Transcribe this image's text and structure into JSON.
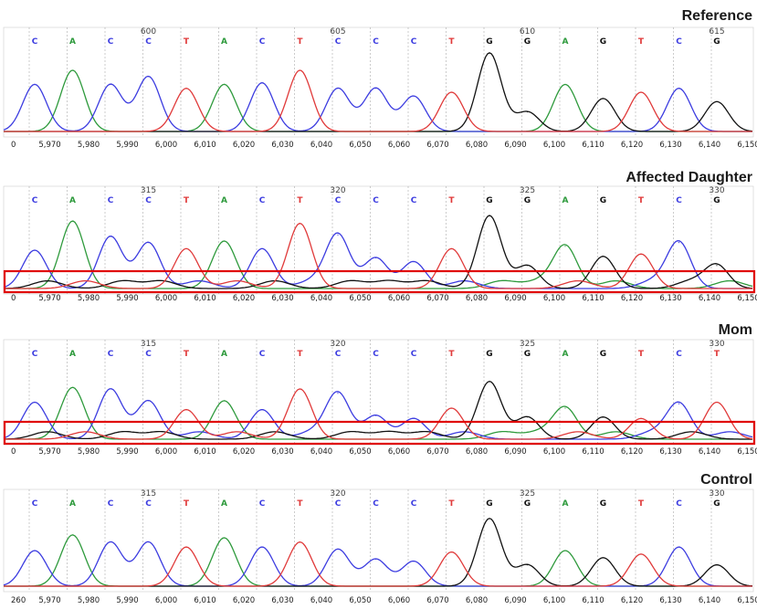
{
  "colors": {
    "A": "#2e9a3c",
    "C": "#3c3ce0",
    "G": "#111111",
    "T": "#e03a3a",
    "highlight": "#e00000",
    "grid": "#9a9a9a"
  },
  "chart_data": [
    {
      "type": "line",
      "title": "Reference",
      "bases": [
        "C",
        "A",
        "C",
        "C",
        "T",
        "A",
        "C",
        "T",
        "C",
        "C",
        "C",
        "T",
        "G",
        "G",
        "A",
        "G",
        "T",
        "C",
        "G"
      ],
      "position_labels": [
        {
          "value": "600",
          "base_index": 3
        },
        {
          "value": "605",
          "base_index": 8
        },
        {
          "value": "610",
          "base_index": 13
        },
        {
          "value": "615",
          "base_index": 18
        }
      ],
      "x_ticks": [
        "0",
        "5,970",
        "5,980",
        "5,990",
        "6,000",
        "6,010",
        "6,020",
        "6,030",
        "6,040",
        "6,050",
        "6,060",
        "6,070",
        "6,080",
        "6,090",
        "6,100",
        "6,110",
        "6,120",
        "6,130",
        "6,140",
        "6,150"
      ],
      "highlight_box": false,
      "peaks": [
        {
          "base": "C",
          "height": 0.6
        },
        {
          "base": "A",
          "height": 0.78
        },
        {
          "base": "C",
          "height": 0.6
        },
        {
          "base": "C",
          "height": 0.7
        },
        {
          "base": "T",
          "height": 0.55
        },
        {
          "base": "A",
          "height": 0.6
        },
        {
          "base": "C",
          "height": 0.62
        },
        {
          "base": "T",
          "height": 0.78
        },
        {
          "base": "C",
          "height": 0.55
        },
        {
          "base": "C",
          "height": 0.55
        },
        {
          "base": "C",
          "height": 0.45
        },
        {
          "base": "T",
          "height": 0.5
        },
        {
          "base": "G",
          "height": 1.0
        },
        {
          "base": "G",
          "height": 0.25
        },
        {
          "base": "A",
          "height": 0.6
        },
        {
          "base": "G",
          "height": 0.42
        },
        {
          "base": "T",
          "height": 0.5
        },
        {
          "base": "C",
          "height": 0.55
        },
        {
          "base": "G",
          "height": 0.38
        }
      ]
    },
    {
      "type": "line",
      "title": "Affected Daughter",
      "bases": [
        "C",
        "A",
        "C",
        "C",
        "T",
        "A",
        "C",
        "T",
        "C",
        "C",
        "C",
        "T",
        "G",
        "G",
        "A",
        "G",
        "T",
        "C",
        "G"
      ],
      "position_labels": [
        {
          "value": "315",
          "base_index": 3
        },
        {
          "value": "320",
          "base_index": 8
        },
        {
          "value": "325",
          "base_index": 13
        },
        {
          "value": "330",
          "base_index": 18
        }
      ],
      "x_ticks": [
        "0",
        "5,970",
        "5,980",
        "5,990",
        "6,000",
        "6,010",
        "6,020",
        "6,030",
        "6,040",
        "6,050",
        "6,060",
        "6,070",
        "6,080",
        "6,090",
        "6,100",
        "6,110",
        "6,120",
        "6,130",
        "6,140",
        "6,150"
      ],
      "highlight_box": true,
      "peaks": [
        {
          "base": "C",
          "height": 0.5
        },
        {
          "base": "A",
          "height": 0.88
        },
        {
          "base": "C",
          "height": 0.68
        },
        {
          "base": "C",
          "height": 0.6
        },
        {
          "base": "T",
          "height": 0.52
        },
        {
          "base": "A",
          "height": 0.62
        },
        {
          "base": "C",
          "height": 0.52
        },
        {
          "base": "T",
          "height": 0.85
        },
        {
          "base": "C",
          "height": 0.7
        },
        {
          "base": "C",
          "height": 0.4
        },
        {
          "base": "C",
          "height": 0.35
        },
        {
          "base": "T",
          "height": 0.52
        },
        {
          "base": "G",
          "height": 0.95
        },
        {
          "base": "G",
          "height": 0.3
        },
        {
          "base": "A",
          "height": 0.55
        },
        {
          "base": "G",
          "height": 0.42
        },
        {
          "base": "T",
          "height": 0.45
        },
        {
          "base": "C",
          "height": 0.6
        },
        {
          "base": "G",
          "height": 0.3
        }
      ]
    },
    {
      "type": "line",
      "title": "Mom",
      "bases": [
        "C",
        "A",
        "C",
        "C",
        "T",
        "A",
        "C",
        "T",
        "C",
        "C",
        "C",
        "T",
        "G",
        "G",
        "A",
        "G",
        "T",
        "C",
        "T"
      ],
      "position_labels": [
        {
          "value": "315",
          "base_index": 3
        },
        {
          "value": "320",
          "base_index": 8
        },
        {
          "value": "325",
          "base_index": 13
        },
        {
          "value": "330",
          "base_index": 18
        }
      ],
      "x_ticks": [
        "0",
        "5,970",
        "5,980",
        "5,990",
        "6,000",
        "6,010",
        "6,020",
        "6,030",
        "6,040",
        "6,050",
        "6,060",
        "6,070",
        "6,080",
        "6,090",
        "6,100",
        "6,110",
        "6,120",
        "6,130",
        "6,140",
        "6,150"
      ],
      "highlight_box": true,
      "peaks": [
        {
          "base": "C",
          "height": 0.5
        },
        {
          "base": "A",
          "height": 0.7
        },
        {
          "base": "C",
          "height": 0.68
        },
        {
          "base": "C",
          "height": 0.52
        },
        {
          "base": "T",
          "height": 0.4
        },
        {
          "base": "A",
          "height": 0.52
        },
        {
          "base": "C",
          "height": 0.4
        },
        {
          "base": "T",
          "height": 0.68
        },
        {
          "base": "C",
          "height": 0.62
        },
        {
          "base": "C",
          "height": 0.32
        },
        {
          "base": "C",
          "height": 0.28
        },
        {
          "base": "T",
          "height": 0.42
        },
        {
          "base": "G",
          "height": 0.78
        },
        {
          "base": "G",
          "height": 0.3
        },
        {
          "base": "A",
          "height": 0.42
        },
        {
          "base": "G",
          "height": 0.3
        },
        {
          "base": "T",
          "height": 0.28
        },
        {
          "base": "C",
          "height": 0.48
        },
        {
          "base": "T",
          "height": 0.5
        }
      ]
    },
    {
      "type": "line",
      "title": "Control",
      "bases": [
        "C",
        "A",
        "C",
        "C",
        "T",
        "A",
        "C",
        "T",
        "C",
        "C",
        "C",
        "T",
        "G",
        "G",
        "A",
        "G",
        "T",
        "C",
        "G"
      ],
      "position_labels": [
        {
          "value": "315",
          "base_index": 3
        },
        {
          "value": "320",
          "base_index": 8
        },
        {
          "value": "325",
          "base_index": 13
        },
        {
          "value": "330",
          "base_index": 18
        }
      ],
      "x_ticks": [
        "260",
        "5,970",
        "5,980",
        "5,990",
        "6,000",
        "6,010",
        "6,020",
        "6,030",
        "6,040",
        "6,050",
        "6,060",
        "6,070",
        "6,080",
        "6,090",
        "6,100",
        "6,110",
        "6,120",
        "6,130",
        "6,140",
        "6,150"
      ],
      "highlight_box": false,
      "peaks": [
        {
          "base": "C",
          "height": 0.5
        },
        {
          "base": "A",
          "height": 0.72
        },
        {
          "base": "C",
          "height": 0.62
        },
        {
          "base": "C",
          "height": 0.62
        },
        {
          "base": "T",
          "height": 0.55
        },
        {
          "base": "A",
          "height": 0.68
        },
        {
          "base": "C",
          "height": 0.55
        },
        {
          "base": "T",
          "height": 0.62
        },
        {
          "base": "C",
          "height": 0.52
        },
        {
          "base": "C",
          "height": 0.38
        },
        {
          "base": "C",
          "height": 0.35
        },
        {
          "base": "T",
          "height": 0.48
        },
        {
          "base": "G",
          "height": 0.95
        },
        {
          "base": "G",
          "height": 0.3
        },
        {
          "base": "A",
          "height": 0.5
        },
        {
          "base": "G",
          "height": 0.4
        },
        {
          "base": "T",
          "height": 0.45
        },
        {
          "base": "C",
          "height": 0.55
        },
        {
          "base": "G",
          "height": 0.3
        }
      ]
    }
  ]
}
